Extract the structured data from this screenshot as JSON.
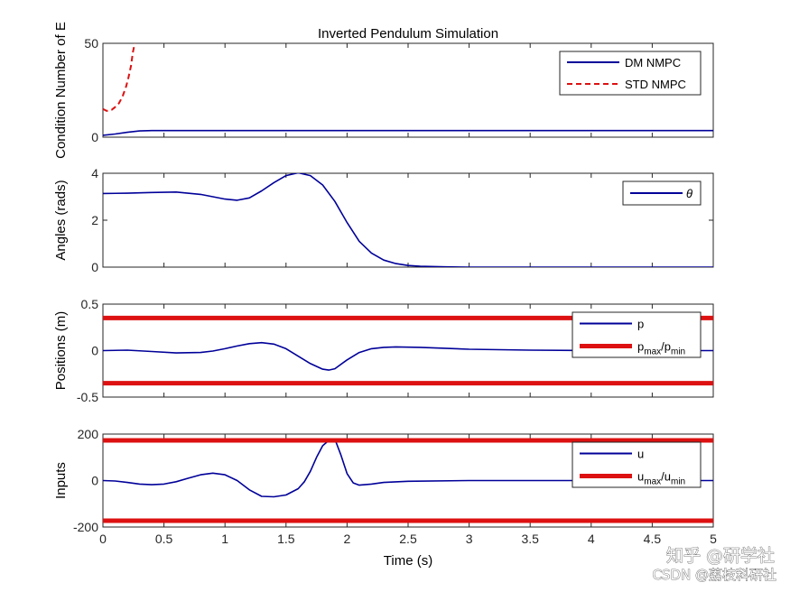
{
  "figure_title": "Inverted Pendulum Simulation",
  "xlabel": "Time (s)",
  "watermark": {
    "line1": "知乎 @研学社",
    "line2": "CSDN @荔枝科研社"
  },
  "colors": {
    "blue": "#000099",
    "red": "#dd1111",
    "axes": "#262626"
  },
  "chart_data": [
    {
      "type": "line",
      "title": "Inverted Pendulum Simulation",
      "ylabel": "Condition Number of E",
      "xlim": [
        0,
        5
      ],
      "ylim": [
        0,
        50
      ],
      "yticks": [
        "0",
        "50"
      ],
      "legend": {
        "placement": "top-right",
        "entries": [
          "DM NMPC",
          "STD NMPC"
        ]
      },
      "series": [
        {
          "name": "DM NMPC",
          "style": "solid",
          "color": "#000099",
          "x": [
            0,
            0.1,
            0.2,
            0.3,
            0.4,
            1,
            2,
            3,
            4,
            5
          ],
          "y": [
            1,
            1.7,
            2.6,
            3.3,
            3.5,
            3.5,
            3.5,
            3.5,
            3.5,
            3.5
          ]
        },
        {
          "name": "STD NMPC",
          "style": "dashed",
          "color": "#dd1111",
          "x": [
            0,
            0.03,
            0.07,
            0.1,
            0.13,
            0.16,
            0.19,
            0.21,
            0.23,
            0.245,
            0.26
          ],
          "y": [
            15,
            14,
            14.5,
            16,
            18,
            21.5,
            27,
            32,
            38,
            45,
            50
          ]
        }
      ]
    },
    {
      "type": "line",
      "title": "",
      "ylabel": "Angles (rads)",
      "xlim": [
        0,
        5
      ],
      "ylim": [
        0,
        4
      ],
      "yticks": [
        "0",
        "2",
        "4"
      ],
      "legend": {
        "placement": "top-right",
        "entries": [
          "θ"
        ]
      },
      "series": [
        {
          "name": "θ",
          "style": "solid",
          "color": "#000099",
          "x": [
            0,
            0.2,
            0.4,
            0.6,
            0.8,
            1.0,
            1.1,
            1.2,
            1.3,
            1.4,
            1.5,
            1.6,
            1.7,
            1.8,
            1.9,
            2.0,
            2.1,
            2.2,
            2.3,
            2.4,
            2.5,
            2.6,
            2.8,
            3.0,
            3.5,
            4.0,
            5.0
          ],
          "y": [
            3.14,
            3.15,
            3.18,
            3.2,
            3.1,
            2.9,
            2.85,
            2.95,
            3.25,
            3.6,
            3.9,
            4.02,
            3.9,
            3.5,
            2.8,
            1.9,
            1.1,
            0.6,
            0.3,
            0.15,
            0.07,
            0.04,
            0.01,
            0,
            0,
            0,
            0
          ]
        }
      ]
    },
    {
      "type": "line",
      "title": "",
      "ylabel": "Positions (m)",
      "xlim": [
        0,
        5
      ],
      "ylim": [
        -0.5,
        0.5
      ],
      "yticks": [
        "-0.5",
        "0",
        "0.5"
      ],
      "legend": {
        "placement": "top-right",
        "entries": [
          "p",
          "pmax/pmin"
        ]
      },
      "series": [
        {
          "name": "p",
          "style": "solid",
          "color": "#000099",
          "x": [
            0,
            0.2,
            0.4,
            0.6,
            0.8,
            0.9,
            1.0,
            1.1,
            1.2,
            1.3,
            1.4,
            1.5,
            1.6,
            1.7,
            1.8,
            1.85,
            1.9,
            2.0,
            2.1,
            2.2,
            2.3,
            2.4,
            2.6,
            2.8,
            3.0,
            3.5,
            4.0,
            4.5,
            5.0
          ],
          "y": [
            0,
            0.005,
            -0.01,
            -0.025,
            -0.02,
            -0.005,
            0.02,
            0.05,
            0.075,
            0.085,
            0.07,
            0.02,
            -0.06,
            -0.14,
            -0.2,
            -0.21,
            -0.195,
            -0.1,
            -0.02,
            0.02,
            0.035,
            0.04,
            0.035,
            0.025,
            0.015,
            0.005,
            0,
            0,
            0
          ]
        },
        {
          "name": "pmax",
          "style": "thick",
          "color": "#dd1111",
          "x": [
            0,
            5
          ],
          "y": [
            0.35,
            0.35
          ]
        },
        {
          "name": "pmin",
          "style": "thick",
          "color": "#dd1111",
          "x": [
            0,
            5
          ],
          "y": [
            -0.35,
            -0.35
          ]
        }
      ]
    },
    {
      "type": "line",
      "title": "",
      "ylabel": "Inputs",
      "xlim": [
        0,
        5
      ],
      "ylim": [
        -200,
        200
      ],
      "yticks": [
        "-200",
        "0",
        "200"
      ],
      "xticks": [
        "0",
        "0.5",
        "1",
        "1.5",
        "2",
        "2.5",
        "3",
        "3.5",
        "4",
        "4.5",
        "5"
      ],
      "legend": {
        "placement": "top-right",
        "entries": [
          "u",
          "umax/umin"
        ]
      },
      "series": [
        {
          "name": "u",
          "style": "solid",
          "color": "#000099",
          "x": [
            0,
            0.1,
            0.2,
            0.3,
            0.4,
            0.5,
            0.6,
            0.7,
            0.8,
            0.9,
            1.0,
            1.1,
            1.2,
            1.3,
            1.4,
            1.5,
            1.6,
            1.65,
            1.7,
            1.75,
            1.8,
            1.85,
            1.88,
            1.91,
            1.95,
            2.0,
            2.05,
            2.1,
            2.2,
            2.3,
            2.5,
            3.0,
            3.5,
            4.0,
            5.0
          ],
          "y": [
            0,
            -2,
            -8,
            -15,
            -18,
            -15,
            -5,
            10,
            25,
            32,
            25,
            0,
            -40,
            -68,
            -70,
            -62,
            -35,
            -5,
            40,
            100,
            150,
            172,
            176,
            165,
            110,
            30,
            -10,
            -20,
            -15,
            -8,
            -3,
            0,
            0,
            0,
            0
          ]
        },
        {
          "name": "umax",
          "style": "thick",
          "color": "#dd1111",
          "x": [
            0,
            5
          ],
          "y": [
            173,
            173
          ]
        },
        {
          "name": "umin",
          "style": "thick",
          "color": "#dd1111",
          "x": [
            0,
            5
          ],
          "y": [
            -173,
            -173
          ]
        }
      ]
    }
  ]
}
